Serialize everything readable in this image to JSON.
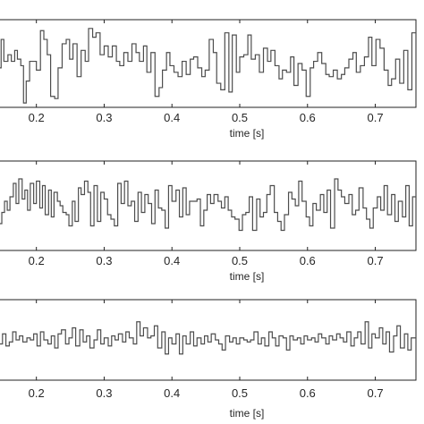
{
  "chart_data": [
    {
      "type": "line",
      "step": true,
      "xlabel": "time [s]",
      "ylabel": "",
      "title": "",
      "xlim": [
        0.145,
        0.76
      ],
      "ylim": [
        -1,
        1
      ],
      "grid": false,
      "xticks": [
        0.2,
        0.3,
        0.4,
        0.5,
        0.6,
        0.7
      ],
      "xtick_labels": [
        "0.2",
        "0.3",
        "0.4",
        "0.5",
        "0.6",
        "0.7"
      ],
      "series": [
        {
          "x": [
            0.145,
            0.148,
            0.152,
            0.158,
            0.163,
            0.168,
            0.172,
            0.177,
            0.181,
            0.185,
            0.19,
            0.195,
            0.2,
            0.206,
            0.211,
            0.216,
            0.221,
            0.227,
            0.232,
            0.238,
            0.244,
            0.249,
            0.254,
            0.26,
            0.266,
            0.272,
            0.277,
            0.283,
            0.288,
            0.294,
            0.3,
            0.306,
            0.312,
            0.318,
            0.323,
            0.329,
            0.335,
            0.341,
            0.347,
            0.352,
            0.358,
            0.363,
            0.369,
            0.375,
            0.381,
            0.386,
            0.392,
            0.397,
            0.403,
            0.409,
            0.415,
            0.421,
            0.427,
            0.432,
            0.438,
            0.444,
            0.449,
            0.455,
            0.461,
            0.466,
            0.472,
            0.478,
            0.484,
            0.489,
            0.495,
            0.5,
            0.506,
            0.512,
            0.517,
            0.523,
            0.529,
            0.535,
            0.541,
            0.546,
            0.552,
            0.558,
            0.563,
            0.569,
            0.575,
            0.58,
            0.586,
            0.592,
            0.598,
            0.604,
            0.609,
            0.615,
            0.621,
            0.627,
            0.632,
            0.638,
            0.644,
            0.65,
            0.655,
            0.661,
            0.667,
            0.672,
            0.678,
            0.684,
            0.69,
            0.695,
            0.701,
            0.707,
            0.713,
            0.719,
            0.724,
            0.73,
            0.736,
            0.742,
            0.748,
            0.754
          ],
          "y": [
            -0.1,
            0.55,
            0.05,
            0.2,
            0.05,
            0.3,
            0.1,
            -0.05,
            -0.9,
            -0.4,
            0.05,
            0.05,
            -0.15,
            0.75,
            0.55,
            0.2,
            -0.75,
            -0.8,
            -0.1,
            0.45,
            0.55,
            0.1,
            0.45,
            -0.3,
            0.3,
            0.05,
            0.8,
            0.6,
            0.7,
            0.2,
            0.4,
            0.15,
            0.4,
            0.05,
            -0.05,
            0.25,
            0.05,
            0.45,
            0.25,
            0.05,
            0.4,
            -0.2,
            0.25,
            -0.75,
            -0.55,
            -0.15,
            0.25,
            -0.05,
            -0.2,
            -0.3,
            0.05,
            -0.25,
            0.1,
            0.15,
            -0.1,
            -0.3,
            -0.15,
            0.55,
            0.25,
            -0.45,
            -0.6,
            0.7,
            -0.65,
            0.65,
            -0.2,
            0.15,
            0.2,
            0.65,
            0.1,
            0.2,
            -0.2,
            0.35,
            0.05,
            0.3,
            -0.05,
            -0.35,
            -0.15,
            -0.2,
            0.15,
            -0.5,
            0.0,
            -0.15,
            -0.75,
            -0.1,
            0.05,
            0.25,
            0.0,
            -0.25,
            -0.3,
            -0.15,
            -0.35,
            -0.25,
            -0.1,
            0.1,
            0.25,
            -0.2,
            -0.05,
            0.15,
            0.6,
            -0.05,
            0.55,
            0.35,
            -0.15,
            -0.5,
            -0.35,
            0.1,
            -0.45,
            0.3,
            -0.6,
            0.7
          ]
        }
      ]
    },
    {
      "type": "line",
      "step": true,
      "xlabel": "time [s]",
      "ylabel": "",
      "title": "",
      "xlim": [
        0.145,
        0.76
      ],
      "ylim": [
        -1,
        1
      ],
      "grid": false,
      "xticks": [
        0.2,
        0.3,
        0.4,
        0.5,
        0.6,
        0.7
      ],
      "xtick_labels": [
        "0.2",
        "0.3",
        "0.4",
        "0.5",
        "0.6",
        "0.7"
      ],
      "series": [
        {
          "x": [
            0.145,
            0.149,
            0.153,
            0.157,
            0.161,
            0.166,
            0.17,
            0.174,
            0.179,
            0.183,
            0.187,
            0.191,
            0.196,
            0.2,
            0.205,
            0.209,
            0.213,
            0.218,
            0.222,
            0.226,
            0.231,
            0.235,
            0.239,
            0.244,
            0.248,
            0.253,
            0.257,
            0.262,
            0.266,
            0.271,
            0.276,
            0.28,
            0.285,
            0.29,
            0.295,
            0.3,
            0.305,
            0.31,
            0.315,
            0.32,
            0.325,
            0.33,
            0.335,
            0.34,
            0.345,
            0.35,
            0.355,
            0.36,
            0.365,
            0.37,
            0.375,
            0.38,
            0.385,
            0.39,
            0.395,
            0.4,
            0.406,
            0.411,
            0.416,
            0.421,
            0.426,
            0.431,
            0.437,
            0.442,
            0.447,
            0.452,
            0.457,
            0.462,
            0.468,
            0.473,
            0.478,
            0.483,
            0.488,
            0.493,
            0.499,
            0.504,
            0.509,
            0.514,
            0.519,
            0.525,
            0.53,
            0.535,
            0.54,
            0.545,
            0.551,
            0.556,
            0.561,
            0.566,
            0.572,
            0.577,
            0.582,
            0.587,
            0.592,
            0.598,
            0.603,
            0.608,
            0.613,
            0.619,
            0.624,
            0.629,
            0.634,
            0.64,
            0.645,
            0.65,
            0.655,
            0.661,
            0.666,
            0.671,
            0.676,
            0.682,
            0.687,
            0.692,
            0.697,
            0.703,
            0.708,
            0.713,
            0.718,
            0.724,
            0.729,
            0.734,
            0.74,
            0.745,
            0.75,
            0.755
          ],
          "y": [
            -0.4,
            -0.15,
            0.1,
            -0.1,
            0.2,
            0.5,
            0.05,
            0.6,
            0.15,
            0.35,
            -0.1,
            0.5,
            0.05,
            0.55,
            -0.05,
            0.45,
            -0.2,
            0.35,
            -0.25,
            0.3,
            0.1,
            0.0,
            -0.15,
            -0.2,
            -0.45,
            0.1,
            -0.35,
            0.4,
            0.25,
            0.55,
            0.3,
            -0.45,
            0.45,
            -0.35,
            0.3,
            0.15,
            -0.2,
            -0.3,
            -0.45,
            0.5,
            0.05,
            0.55,
            0.0,
            0.1,
            -0.35,
            0.3,
            -0.15,
            0.25,
            0.05,
            -0.4,
            0.35,
            -0.05,
            -0.1,
            -0.5,
            0.45,
            0.1,
            0.35,
            -0.25,
            0.4,
            -0.2,
            0.1,
            0.1,
            0.15,
            -0.45,
            -0.1,
            0.25,
            0.05,
            0.25,
            0.1,
            -0.05,
            0.2,
            -0.1,
            -0.25,
            -0.3,
            -0.55,
            -0.2,
            -0.15,
            0.2,
            -0.55,
            0.15,
            -0.25,
            -0.15,
            0.25,
            0.45,
            -0.15,
            -0.35,
            -0.55,
            -0.2,
            0.3,
            0.15,
            0.0,
            0.55,
            0.1,
            -0.25,
            -0.45,
            0.05,
            -0.1,
            0.25,
            -0.15,
            0.35,
            -0.5,
            0.6,
            0.35,
            0.2,
            0.05,
            0.25,
            -0.2,
            -0.1,
            0.4,
            -0.05,
            -0.3,
            -0.5,
            -0.05,
            0.2,
            -0.1,
            0.45,
            -0.2,
            0.25,
            -0.35,
            0.1,
            -0.25,
            0.45,
            -0.45,
            0.2
          ]
        }
      ]
    },
    {
      "type": "line",
      "step": true,
      "xlabel": "time [s]",
      "ylabel": "",
      "title": "",
      "xlim": [
        0.145,
        0.76
      ],
      "ylim": [
        -1,
        1
      ],
      "grid": false,
      "xticks": [
        0.2,
        0.3,
        0.4,
        0.5,
        0.6,
        0.7
      ],
      "xtick_labels": [
        "0.2",
        "0.3",
        "0.4",
        "0.5",
        "0.6",
        "0.7"
      ],
      "series": [
        {
          "x": [
            0.145,
            0.15,
            0.155,
            0.16,
            0.165,
            0.17,
            0.175,
            0.18,
            0.186,
            0.191,
            0.196,
            0.201,
            0.206,
            0.211,
            0.217,
            0.222,
            0.227,
            0.232,
            0.237,
            0.243,
            0.248,
            0.253,
            0.258,
            0.264,
            0.269,
            0.274,
            0.279,
            0.285,
            0.29,
            0.295,
            0.3,
            0.306,
            0.311,
            0.316,
            0.321,
            0.327,
            0.332,
            0.337,
            0.343,
            0.348,
            0.353,
            0.358,
            0.364,
            0.369,
            0.374,
            0.379,
            0.385,
            0.39,
            0.395,
            0.4,
            0.406,
            0.411,
            0.416,
            0.421,
            0.427,
            0.432,
            0.437,
            0.443,
            0.448,
            0.453,
            0.458,
            0.464,
            0.469,
            0.474,
            0.479,
            0.485,
            0.49,
            0.495,
            0.5,
            0.506,
            0.511,
            0.516,
            0.521,
            0.527,
            0.532,
            0.537,
            0.543,
            0.548,
            0.553,
            0.558,
            0.564,
            0.569,
            0.574,
            0.579,
            0.585,
            0.59,
            0.595,
            0.6,
            0.606,
            0.611,
            0.616,
            0.621,
            0.627,
            0.632,
            0.637,
            0.643,
            0.648,
            0.653,
            0.658,
            0.664,
            0.669,
            0.674,
            0.679,
            0.685,
            0.69,
            0.695,
            0.7,
            0.706,
            0.711,
            0.716,
            0.721,
            0.727,
            0.732,
            0.737,
            0.743,
            0.748,
            0.753
          ],
          "y": [
            -0.1,
            0.15,
            -0.15,
            -0.05,
            0.2,
            0.0,
            0.1,
            -0.05,
            0.05,
            0.0,
            0.15,
            -0.15,
            0.2,
            0.0,
            -0.1,
            0.1,
            -0.2,
            0.15,
            0.25,
            -0.1,
            0.05,
            0.3,
            -0.15,
            0.25,
            -0.05,
            0.1,
            -0.2,
            0.0,
            0.25,
            -0.1,
            0.05,
            -0.15,
            0.1,
            0.0,
            0.15,
            -0.05,
            0.2,
            0.05,
            -0.1,
            0.45,
            0.1,
            0.3,
            0.05,
            0.1,
            0.35,
            -0.2,
            0.2,
            -0.35,
            0.05,
            -0.1,
            0.15,
            -0.35,
            0.1,
            -0.1,
            0.2,
            -0.15,
            0.05,
            -0.1,
            0.1,
            -0.05,
            0.15,
            0.0,
            -0.1,
            -0.25,
            0.1,
            -0.05,
            0.05,
            -0.1,
            0.05,
            0.0,
            -0.05,
            0.0,
            0.2,
            -0.1,
            0.05,
            -0.15,
            0.2,
            0.05,
            -0.15,
            0.1,
            0.05,
            -0.25,
            0.1,
            0.0,
            0.05,
            -0.1,
            0.1,
            0.0,
            0.05,
            -0.05,
            0.15,
            0.05,
            -0.1,
            0.1,
            0.0,
            0.15,
            0.05,
            -0.05,
            0.2,
            -0.15,
            0.05,
            0.2,
            -0.1,
            0.45,
            -0.2,
            0.15,
            0.05,
            0.3,
            -0.1,
            0.2,
            -0.3,
            0.1,
            0.35,
            -0.2,
            0.15,
            -0.25,
            0.05
          ]
        }
      ]
    }
  ]
}
